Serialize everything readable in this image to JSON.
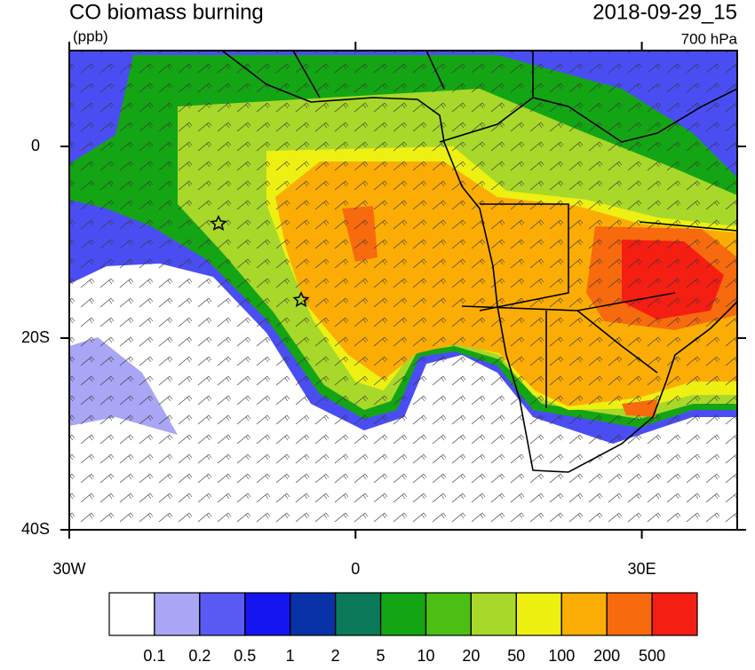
{
  "chart_data": {
    "type": "map",
    "title": "CO biomass burning",
    "units": "(ppb)",
    "date": "2018-09-29_15",
    "level": "700 hPa",
    "xlim": [
      -30,
      40
    ],
    "ylim": [
      -40,
      10
    ],
    "xticks": [
      {
        "value": -30,
        "label": "30W"
      },
      0,
      {
        "value": 30,
        "label": "30E"
      }
    ],
    "yticks": [
      0,
      {
        "value": -20,
        "label": "20S"
      },
      {
        "value": -40,
        "label": "40S"
      }
    ],
    "colorbar": {
      "levels": [
        0.1,
        0.2,
        0.5,
        1,
        2,
        5,
        10,
        20,
        50,
        100,
        200,
        500
      ],
      "colors": [
        "#ffffff",
        "#a9a6f6",
        "#5a5af5",
        "#1414f0",
        "#0a32a8",
        "#0a7a5a",
        "#14a514",
        "#4cbf14",
        "#a8d82a",
        "#eef012",
        "#fbad05",
        "#f86a0e",
        "#f51e12"
      ]
    }
  }
}
